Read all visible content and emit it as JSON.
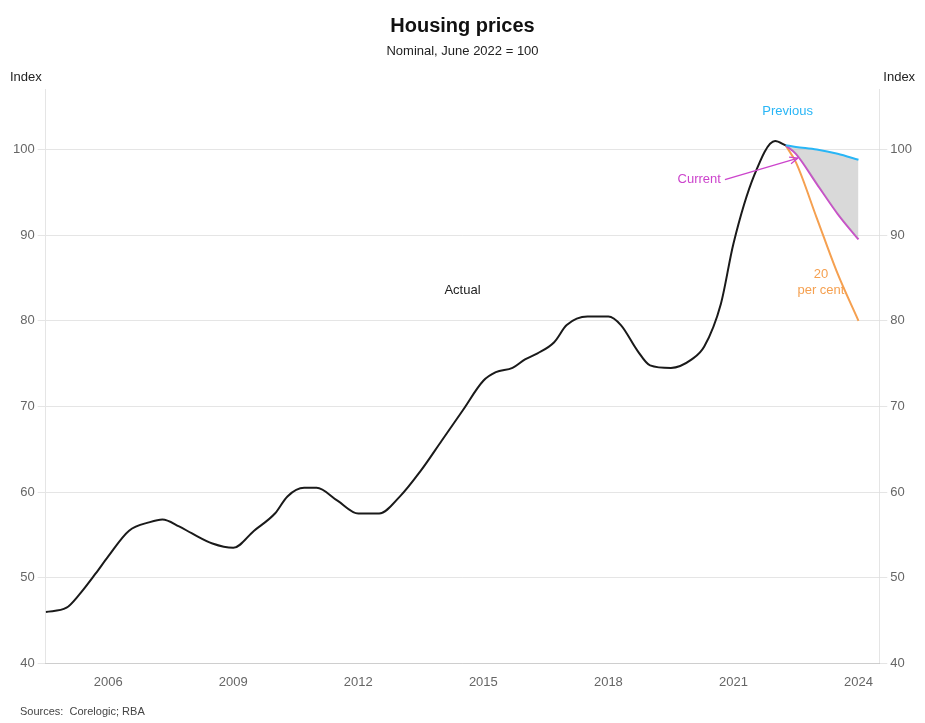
{
  "chart_data": {
    "type": "line",
    "title": "Housing prices",
    "subtitle": "Nominal, June 2022 = 100",
    "ylabel": "Index",
    "y2label": "Index",
    "source": "Sources:  Corelogic; RBA",
    "xlim": [
      2004.5,
      2024.5
    ],
    "xticks": [
      2006,
      2009,
      2012,
      2015,
      2018,
      2021,
      2024
    ],
    "ylim": [
      40,
      107
    ],
    "yticks": [
      40,
      50,
      60,
      70,
      80,
      90,
      100
    ],
    "y2lim": [
      40,
      107
    ],
    "y2ticks": [
      40,
      50,
      60,
      70,
      80,
      90,
      100
    ],
    "grid": "y",
    "series": [
      {
        "name": "Actual",
        "color": "#1a1a1a",
        "x": [
          2004.5,
          2005.0,
          2005.3,
          2005.7,
          2006.0,
          2006.5,
          2007.0,
          2007.3,
          2007.7,
          2008.0,
          2008.5,
          2009.0,
          2009.5,
          2010.0,
          2010.3,
          2010.7,
          2011.0,
          2011.5,
          2012.0,
          2012.5,
          2013.0,
          2013.5,
          2014.0,
          2014.5,
          2015.0,
          2015.3,
          2015.7,
          2016.0,
          2016.3,
          2016.7,
          2017.0,
          2017.5,
          2018.0,
          2018.3,
          2018.7,
          2019.0,
          2019.5,
          2020.0,
          2020.3,
          2020.7,
          2021.0,
          2021.5,
          2022.0,
          2022.25
        ],
        "values": [
          46.0,
          46.5,
          48.0,
          50.5,
          52.5,
          55.5,
          56.5,
          56.8,
          56.0,
          55.2,
          54.0,
          53.5,
          55.5,
          57.5,
          59.5,
          60.5,
          60.5,
          59.0,
          57.5,
          57.5,
          59.5,
          62.5,
          66.0,
          69.5,
          73.0,
          74.0,
          74.5,
          75.5,
          76.2,
          77.5,
          79.5,
          80.5,
          80.5,
          79.5,
          76.5,
          74.8,
          74.5,
          75.5,
          77.0,
          82.0,
          89.0,
          97.0,
          101.0,
          100.5
        ]
      },
      {
        "name": "Previous",
        "color": "#29b6f6",
        "x": [
          2022.25,
          2022.5,
          2023.0,
          2023.5,
          2024.0
        ],
        "values": [
          100.5,
          100.3,
          100.0,
          99.5,
          98.8
        ]
      },
      {
        "name": "Current",
        "color": "#cc44cc",
        "x": [
          2022.25,
          2022.5,
          2023.0,
          2023.5,
          2024.0
        ],
        "values": [
          100.5,
          99.5,
          96.0,
          92.5,
          89.5
        ]
      },
      {
        "name": "20 per cent",
        "color": "#f5a050",
        "x": [
          2022.25,
          2022.5,
          2023.0,
          2023.5,
          2024.0
        ],
        "values": [
          100.5,
          98.5,
          92.0,
          85.5,
          80.0
        ]
      }
    ],
    "band": {
      "from": "Previous",
      "to": "Current",
      "color": "#aaaaaa"
    },
    "annotations": [
      {
        "text": "Actual",
        "x": 2014.5,
        "y": 83.5,
        "color": "#222222"
      },
      {
        "text": "Previous",
        "x": 2022.3,
        "y": 104.5,
        "color": "#29b6f6"
      },
      {
        "text": "Current",
        "x": 2020.7,
        "y": 96.5,
        "color": "#cc44cc",
        "arrow_to": [
          2022.55,
          99.0
        ]
      },
      {
        "text": [
          "20",
          "per cent"
        ],
        "x": 2023.1,
        "y": 84.5,
        "color": "#f5a050"
      }
    ]
  }
}
